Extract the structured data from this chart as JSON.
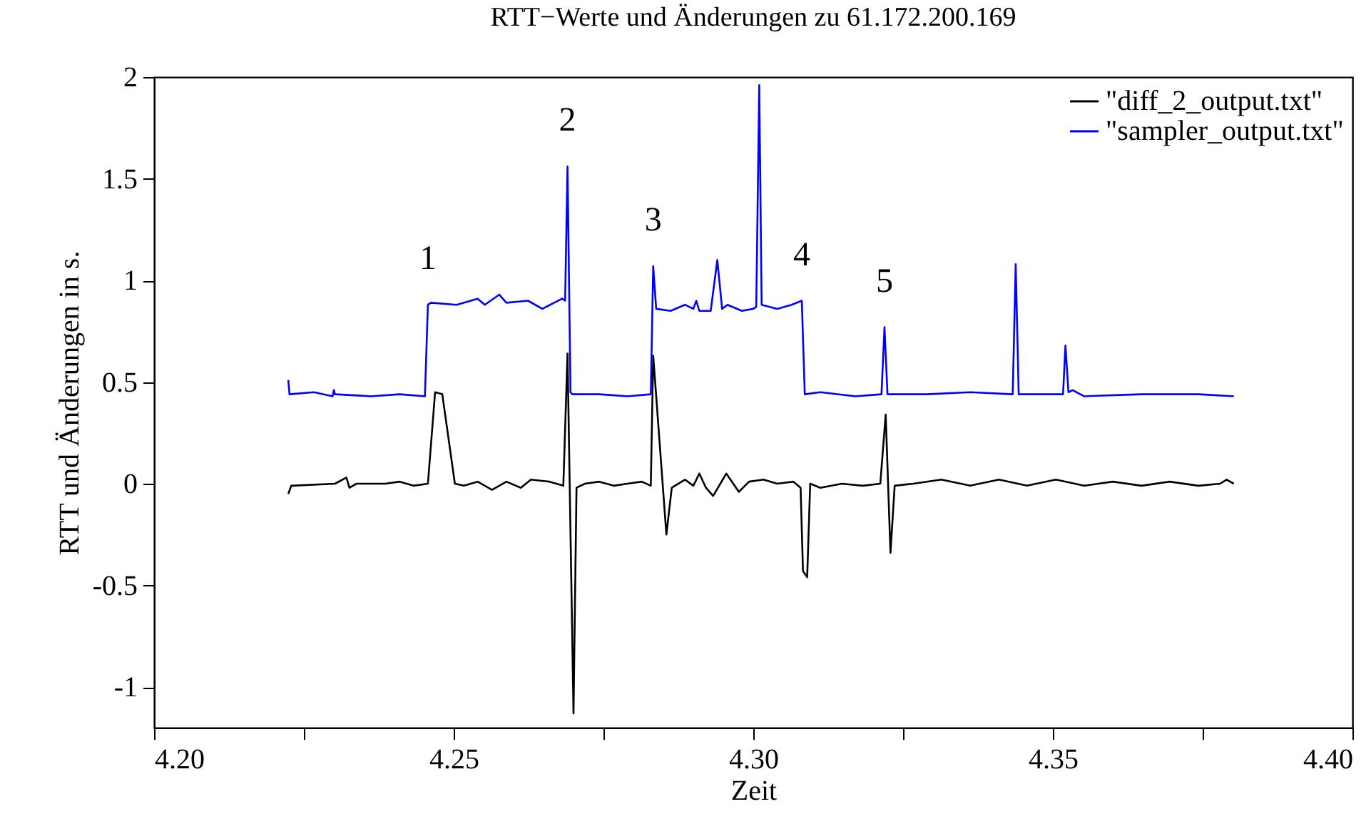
{
  "chart_data": {
    "type": "line",
    "title": "RTT−Werte und Änderungen  zu 61.172.200.169",
    "xlabel": "Zeit",
    "ylabel": "RTT und Änderungen in s.",
    "xlim": [
      4.2,
      4.4
    ],
    "xticks": [
      {
        "value": 4.2,
        "label": "4.20"
      },
      {
        "value": 4.225,
        "label": null
      },
      4.25,
      {
        "value": 4.275,
        "label": null
      },
      {
        "value": 4.3,
        "label": "4.30"
      },
      {
        "value": 4.325,
        "label": null
      },
      4.35,
      {
        "value": 4.375,
        "label": null
      },
      {
        "value": 4.4,
        "label": "4.40"
      }
    ],
    "ylim": [
      -1.2,
      2
    ],
    "yticks": [
      -1,
      -0.5,
      0,
      0.5,
      1,
      1.5,
      2
    ],
    "grid": false,
    "legend": "top right",
    "series": [
      {
        "name": "\"diff_2_output.txt\"",
        "color": "#000000",
        "x": [
          4.2224,
          4.2229,
          4.2302,
          4.2321,
          4.2326,
          4.2338,
          4.2386,
          4.241,
          4.2433,
          4.2457,
          4.2469,
          4.2481,
          4.2502,
          4.2517,
          4.254,
          4.2564,
          4.2588,
          4.2612,
          4.2629,
          4.266,
          4.2683,
          4.269,
          4.27,
          4.2705,
          4.2719,
          4.2743,
          4.2767,
          4.279,
          4.2814,
          4.2829,
          4.2833,
          4.2855,
          4.2864,
          4.2886,
          4.29,
          4.291,
          4.2921,
          4.2933,
          4.2955,
          4.2976,
          4.2993,
          4.3017,
          4.304,
          4.3067,
          4.3079,
          4.3083,
          4.309,
          4.3095,
          4.3112,
          4.3148,
          4.3183,
          4.3212,
          4.3221,
          4.3229,
          4.3236,
          4.3267,
          4.3314,
          4.3362,
          4.341,
          4.3457,
          4.3505,
          4.3552,
          4.36,
          4.3648,
          4.3695,
          4.3743,
          4.3779,
          4.379,
          4.3802
        ],
        "values": [
          -0.05,
          -0.01,
          0.0,
          0.03,
          -0.02,
          0.0,
          0.0,
          0.01,
          -0.01,
          0.0,
          0.45,
          0.44,
          0.0,
          -0.01,
          0.01,
          -0.03,
          0.01,
          -0.02,
          0.02,
          0.01,
          -0.01,
          0.64,
          -1.13,
          -0.02,
          0.0,
          0.01,
          -0.01,
          0.0,
          0.01,
          -0.01,
          0.63,
          -0.25,
          -0.02,
          0.02,
          -0.01,
          0.05,
          -0.02,
          -0.06,
          0.05,
          -0.04,
          0.01,
          0.02,
          0.0,
          0.01,
          -0.02,
          -0.43,
          -0.46,
          0.0,
          -0.02,
          0.0,
          -0.01,
          0.0,
          0.34,
          -0.34,
          -0.01,
          0.0,
          0.02,
          -0.01,
          0.02,
          -0.01,
          0.02,
          -0.01,
          0.01,
          -0.01,
          0.01,
          -0.01,
          0.0,
          0.02,
          0.0
        ]
      },
      {
        "name": "\"sampler_output.txt\"",
        "color": "#0000ff",
        "x": [
          4.2224,
          4.2226,
          4.2267,
          4.2298,
          4.23,
          4.2302,
          4.2362,
          4.241,
          4.2452,
          4.2457,
          4.2462,
          4.2505,
          4.254,
          4.2552,
          4.2576,
          4.2588,
          4.2624,
          4.2648,
          4.2681,
          4.2686,
          4.269,
          4.2695,
          4.2698,
          4.2743,
          4.279,
          4.2829,
          4.2833,
          4.2838,
          4.2862,
          4.2886,
          4.29,
          4.2905,
          4.291,
          4.2929,
          4.294,
          4.2948,
          4.2957,
          4.2981,
          4.3,
          4.3005,
          4.301,
          4.3014,
          4.304,
          4.3064,
          4.3081,
          4.3086,
          4.3112,
          4.3171,
          4.3214,
          4.3219,
          4.3224,
          4.329,
          4.3362,
          4.3433,
          4.3438,
          4.3443,
          4.3505,
          4.3517,
          4.3521,
          4.3526,
          4.3533,
          4.3552,
          4.3648,
          4.3743,
          4.3802
        ],
        "values": [
          0.51,
          0.44,
          0.45,
          0.43,
          0.46,
          0.44,
          0.43,
          0.44,
          0.43,
          0.88,
          0.89,
          0.88,
          0.91,
          0.88,
          0.93,
          0.89,
          0.9,
          0.86,
          0.91,
          0.9,
          1.56,
          0.45,
          0.44,
          0.44,
          0.43,
          0.44,
          1.07,
          0.86,
          0.85,
          0.88,
          0.86,
          0.9,
          0.85,
          0.85,
          1.1,
          0.86,
          0.88,
          0.85,
          0.86,
          0.87,
          1.96,
          0.88,
          0.86,
          0.88,
          0.9,
          0.44,
          0.45,
          0.43,
          0.44,
          0.77,
          0.44,
          0.44,
          0.45,
          0.44,
          1.08,
          0.44,
          0.44,
          0.44,
          0.68,
          0.45,
          0.46,
          0.43,
          0.44,
          0.44,
          0.43
        ]
      }
    ],
    "annotations": [
      {
        "text": "1",
        "x": 4.2457,
        "y": 0.88
      },
      {
        "text": "2",
        "x": 4.269,
        "y": 1.56
      },
      {
        "text": "3",
        "x": 4.2833,
        "y": 1.07
      },
      {
        "text": "4",
        "x": 4.3081,
        "y": 0.9
      },
      {
        "text": "5",
        "x": 4.3219,
        "y": 0.77
      }
    ]
  }
}
